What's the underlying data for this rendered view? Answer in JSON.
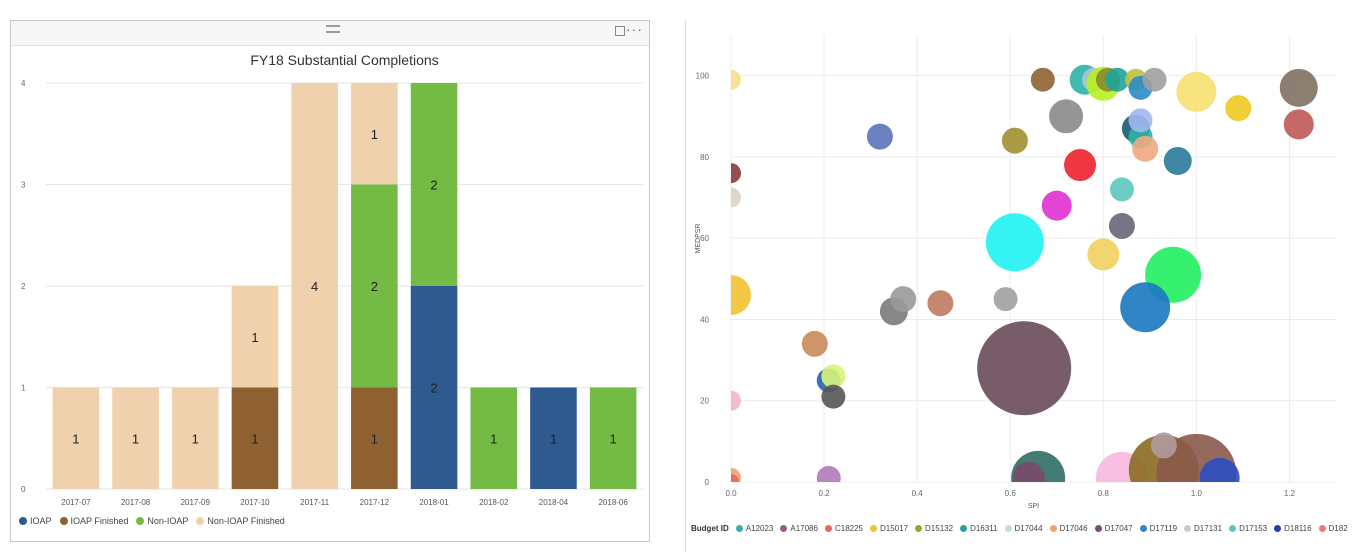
{
  "left_panel": {
    "icons": {
      "drag": "drag-handle-icon",
      "focus": "focus-mode-icon",
      "more": "more-options-icon"
    },
    "more_label": "···"
  },
  "chart_data": [
    {
      "type": "bar",
      "stacked": true,
      "title": "FY18 Substantial Completions",
      "categories": [
        "2017-07",
        "2017-08",
        "2017-09",
        "2017-10",
        "2017-11",
        "2017-12",
        "2018-01",
        "2018-02",
        "2018-04",
        "2018-06"
      ],
      "series": [
        {
          "name": "IOAP",
          "color": "#2f5a8f",
          "values": [
            0,
            0,
            0,
            0,
            0,
            0,
            2,
            0,
            1,
            0
          ]
        },
        {
          "name": "IOAP Finished",
          "color": "#8f6132",
          "values": [
            0,
            0,
            0,
            1,
            0,
            1,
            0,
            0,
            0,
            0
          ]
        },
        {
          "name": "Non-IOAP",
          "color": "#73bb44",
          "values": [
            0,
            0,
            0,
            0,
            0,
            2,
            2,
            1,
            0,
            1
          ]
        },
        {
          "name": "Non-IOAP Finished",
          "color": "#f0d1ad",
          "values": [
            1,
            1,
            1,
            1,
            4,
            1,
            0,
            0,
            0,
            0
          ]
        }
      ],
      "ylim": [
        0,
        4
      ],
      "yticks": [
        0,
        1,
        2,
        3,
        4
      ],
      "grid": true,
      "legend_position": "bottom-left"
    },
    {
      "type": "scatter",
      "bubble": true,
      "xlabel": "SPI",
      "ylabel": "MEDPSR",
      "xlim": [
        0,
        1.3
      ],
      "ylim": [
        0,
        110
      ],
      "xticks": [
        0,
        0.2,
        0.4,
        0.6,
        0.8,
        1.0,
        1.2
      ],
      "xtick_labels": [
        "0.0",
        "0.2",
        "0.4",
        "0.6",
        "0.8",
        "1.0",
        "1.2"
      ],
      "yticks": [
        0,
        20,
        40,
        60,
        80,
        100
      ],
      "grid": true,
      "legend_title": "Budget ID",
      "legend_position": "bottom",
      "legend": [
        {
          "name": "A12023",
          "color": "#2bb3a8"
        },
        {
          "name": "A17086",
          "color": "#9a5a8e"
        },
        {
          "name": "C18225",
          "color": "#e8675f"
        },
        {
          "name": "D15017",
          "color": "#f2c230"
        },
        {
          "name": "D15132",
          "color": "#9aa52a"
        },
        {
          "name": "D16311",
          "color": "#1fa39a"
        },
        {
          "name": "D17044",
          "color": "#bfe0d9"
        },
        {
          "name": "D17046",
          "color": "#f0a26a"
        },
        {
          "name": "D17047",
          "color": "#7a4a7a"
        },
        {
          "name": "D17119",
          "color": "#2a8cc6"
        },
        {
          "name": "D17131",
          "color": "#c9c9c9"
        },
        {
          "name": "D17153",
          "color": "#5dc5bf"
        },
        {
          "name": "D18116",
          "color": "#1f3fb0"
        },
        {
          "name": "D182",
          "color": "#e87a7a"
        }
      ],
      "points": [
        {
          "x": 0.0,
          "y": 99,
          "size": 10,
          "color": "#f7e08a"
        },
        {
          "x": 0.0,
          "y": 76,
          "size": 10,
          "color": "#8a3a3a"
        },
        {
          "x": 0.0,
          "y": 70,
          "size": 10,
          "color": "#d9d3cb"
        },
        {
          "x": 0.0,
          "y": 46,
          "size": 20,
          "color": "#f2c230"
        },
        {
          "x": 0.0,
          "y": 20,
          "size": 10,
          "color": "#f2b6c4"
        },
        {
          "x": 0.0,
          "y": 1,
          "size": 10,
          "color": "#f0a26a"
        },
        {
          "x": 0.0,
          "y": 0,
          "size": 8,
          "color": "#e8675f"
        },
        {
          "x": 0.18,
          "y": 34,
          "size": 13,
          "color": "#c98a5a"
        },
        {
          "x": 0.21,
          "y": 25,
          "size": 12,
          "color": "#2a5fa8"
        },
        {
          "x": 0.22,
          "y": 26,
          "size": 12,
          "color": "#d6f57a"
        },
        {
          "x": 0.22,
          "y": 21,
          "size": 12,
          "color": "#555555"
        },
        {
          "x": 0.21,
          "y": 1,
          "size": 12,
          "color": "#b07ab8"
        },
        {
          "x": 0.32,
          "y": 85,
          "size": 13,
          "color": "#5b72b8"
        },
        {
          "x": 0.35,
          "y": 42,
          "size": 14,
          "color": "#7a7a7a"
        },
        {
          "x": 0.37,
          "y": 45,
          "size": 13,
          "color": "#9a9a9a"
        },
        {
          "x": 0.45,
          "y": 44,
          "size": 13,
          "color": "#c07a60"
        },
        {
          "x": 0.59,
          "y": 45,
          "size": 12,
          "color": "#a0a0a0"
        },
        {
          "x": 0.61,
          "y": 84,
          "size": 13,
          "color": "#a09030"
        },
        {
          "x": 0.61,
          "y": 59,
          "size": 29,
          "color": "#1ff2f2"
        },
        {
          "x": 0.63,
          "y": 28,
          "size": 47,
          "color": "#6a4a5a"
        },
        {
          "x": 0.66,
          "y": 1,
          "size": 27,
          "color": "#2e6e66"
        },
        {
          "x": 0.64,
          "y": 1,
          "size": 16,
          "color": "#7a4a6a"
        },
        {
          "x": 0.67,
          "y": 99,
          "size": 12,
          "color": "#8f6132"
        },
        {
          "x": 0.7,
          "y": 68,
          "size": 15,
          "color": "#e030d0"
        },
        {
          "x": 0.72,
          "y": 90,
          "size": 17,
          "color": "#8a8a8a"
        },
        {
          "x": 0.75,
          "y": 78,
          "size": 16,
          "color": "#f02030"
        },
        {
          "x": 0.76,
          "y": 99,
          "size": 15,
          "color": "#2bb3a8"
        },
        {
          "x": 0.78,
          "y": 99,
          "size": 12,
          "color": "#a9c7d8"
        },
        {
          "x": 0.8,
          "y": 98,
          "size": 17,
          "color": "#b8f020"
        },
        {
          "x": 0.81,
          "y": 99,
          "size": 12,
          "color": "#8a8a30"
        },
        {
          "x": 0.8,
          "y": 56,
          "size": 16,
          "color": "#f2d060"
        },
        {
          "x": 0.83,
          "y": 99,
          "size": 12,
          "color": "#1fa39a"
        },
        {
          "x": 0.84,
          "y": 63,
          "size": 13,
          "color": "#666677"
        },
        {
          "x": 0.84,
          "y": 72,
          "size": 12,
          "color": "#5dc5bf"
        },
        {
          "x": 0.84,
          "y": 1,
          "size": 26,
          "color": "#f7b8e0"
        },
        {
          "x": 0.87,
          "y": 87,
          "size": 14,
          "color": "#1a5a70"
        },
        {
          "x": 0.88,
          "y": 85,
          "size": 12,
          "color": "#2bb3a8"
        },
        {
          "x": 0.87,
          "y": 99,
          "size": 11,
          "color": "#c0c040"
        },
        {
          "x": 0.88,
          "y": 97,
          "size": 12,
          "color": "#2a8cc6"
        },
        {
          "x": 0.88,
          "y": 89,
          "size": 12,
          "color": "#a0b8f0"
        },
        {
          "x": 0.89,
          "y": 82,
          "size": 13,
          "color": "#f0a880"
        },
        {
          "x": 0.91,
          "y": 99,
          "size": 12,
          "color": "#a0a0a0"
        },
        {
          "x": 0.93,
          "y": 3,
          "size": 35,
          "color": "#8a6a20"
        },
        {
          "x": 0.95,
          "y": 51,
          "size": 28,
          "color": "#20f060"
        },
        {
          "x": 0.89,
          "y": 43,
          "size": 25,
          "color": "#1a78c0"
        },
        {
          "x": 0.96,
          "y": 79,
          "size": 14,
          "color": "#2a7a9a"
        },
        {
          "x": 1.0,
          "y": 2,
          "size": 40,
          "color": "#8a5a4a"
        },
        {
          "x": 0.93,
          "y": 9,
          "size": 13,
          "color": "#b09aa0"
        },
        {
          "x": 1.0,
          "y": 96,
          "size": 20,
          "color": "#f7e070"
        },
        {
          "x": 1.05,
          "y": 1,
          "size": 20,
          "color": "#2a4fc0"
        },
        {
          "x": 1.09,
          "y": 92,
          "size": 13,
          "color": "#f0c820"
        },
        {
          "x": 1.22,
          "y": 97,
          "size": 19,
          "color": "#807060"
        },
        {
          "x": 1.22,
          "y": 88,
          "size": 15,
          "color": "#c05858"
        }
      ]
    }
  ]
}
